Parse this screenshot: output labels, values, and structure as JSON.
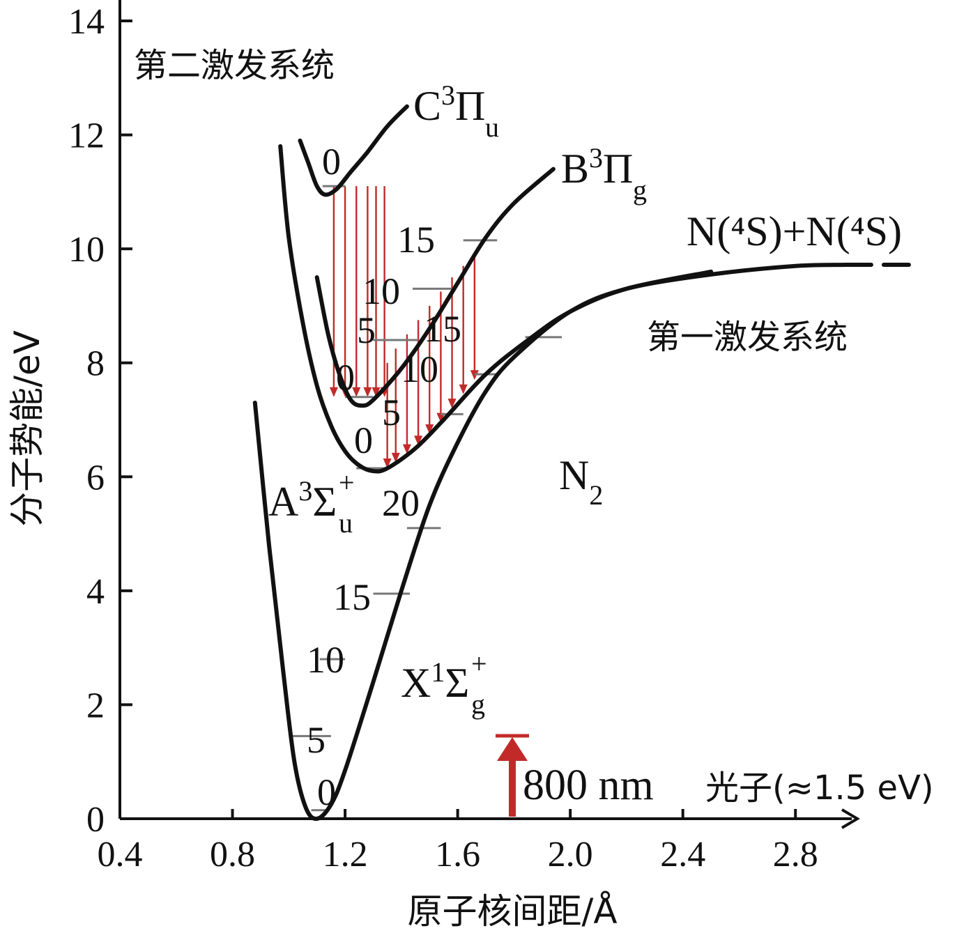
{
  "chart_data": {
    "type": "line",
    "title": "",
    "xlabel": "原子核间距/Å",
    "ylabel": "分子势能/eV",
    "xlim": [
      0.4,
      3.0
    ],
    "ylim": [
      0,
      14
    ],
    "xticks": [
      "0.4",
      "0.8",
      "1.2",
      "1.6",
      "2.0",
      "2.4",
      "2.8"
    ],
    "yticks": [
      "0",
      "2",
      "4",
      "6",
      "8",
      "10",
      "12",
      "14"
    ],
    "grid": false,
    "series": [
      {
        "name": "X¹Σg⁺",
        "label": {
          "main": "X",
          "sup": "1",
          "greek": "Σ",
          "sub": "g",
          "sup2": "+"
        },
        "points": [
          [
            0.88,
            7.3
          ],
          [
            0.93,
            4.8
          ],
          [
            0.98,
            2.6
          ],
          [
            1.02,
            1.0
          ],
          [
            1.06,
            0.2
          ],
          [
            1.1,
            0.0
          ],
          [
            1.15,
            0.25
          ],
          [
            1.2,
            0.85
          ],
          [
            1.3,
            2.4
          ],
          [
            1.4,
            4.0
          ],
          [
            1.5,
            5.5
          ],
          [
            1.6,
            6.6
          ],
          [
            1.7,
            7.5
          ],
          [
            1.8,
            8.1
          ],
          [
            2.0,
            8.9
          ],
          [
            2.2,
            9.3
          ],
          [
            2.5,
            9.55
          ],
          [
            2.8,
            9.7
          ],
          [
            2.98,
            9.72
          ]
        ],
        "levels": [
          {
            "v": "0",
            "energy": 0.15
          },
          {
            "v": "5",
            "energy": 1.45
          },
          {
            "v": "10",
            "energy": 2.8
          },
          {
            "v": "15",
            "energy": 3.95
          },
          {
            "v": "20",
            "energy": 5.1
          }
        ]
      },
      {
        "name": "A³Σu⁺",
        "label": {
          "main": "A",
          "sup": "3",
          "greek": "Σ",
          "sub": "u",
          "sup2": "+"
        },
        "points": [
          [
            0.97,
            11.8
          ],
          [
            1.0,
            10.2
          ],
          [
            1.05,
            8.7
          ],
          [
            1.1,
            7.6
          ],
          [
            1.15,
            6.9
          ],
          [
            1.2,
            6.45
          ],
          [
            1.25,
            6.2
          ],
          [
            1.3,
            6.1
          ],
          [
            1.35,
            6.15
          ],
          [
            1.45,
            6.5
          ],
          [
            1.55,
            7.0
          ],
          [
            1.7,
            7.8
          ],
          [
            1.85,
            8.4
          ],
          [
            2.0,
            8.9
          ],
          [
            2.2,
            9.3
          ],
          [
            2.5,
            9.6
          ]
        ],
        "levels": [
          {
            "v": "0",
            "energy": 6.15
          },
          {
            "v": "5",
            "energy": 7.1
          },
          {
            "v": "10",
            "energy": 7.8
          },
          {
            "v": "15",
            "energy": 8.45
          }
        ]
      },
      {
        "name": "B³Πg",
        "label": {
          "main": "B",
          "sup": "3",
          "greek": "Π",
          "sub": "g",
          "sup2": ""
        },
        "points": [
          [
            1.1,
            9.5
          ],
          [
            1.14,
            8.5
          ],
          [
            1.18,
            7.8
          ],
          [
            1.22,
            7.35
          ],
          [
            1.26,
            7.25
          ],
          [
            1.3,
            7.35
          ],
          [
            1.4,
            7.9
          ],
          [
            1.5,
            8.6
          ],
          [
            1.6,
            9.4
          ],
          [
            1.7,
            10.2
          ],
          [
            1.8,
            10.8
          ],
          [
            1.94,
            11.4
          ]
        ],
        "levels": [
          {
            "v": "0",
            "energy": 7.4
          },
          {
            "v": "5",
            "energy": 8.4
          },
          {
            "v": "10",
            "energy": 9.3
          },
          {
            "v": "15",
            "energy": 10.15
          }
        ]
      },
      {
        "name": "C³Πu",
        "label": {
          "main": "C",
          "sup": "3",
          "greek": "Π",
          "sub": "u",
          "sup2": ""
        },
        "points": [
          [
            1.04,
            11.9
          ],
          [
            1.07,
            11.5
          ],
          [
            1.1,
            11.1
          ],
          [
            1.13,
            10.95
          ],
          [
            1.17,
            11.05
          ],
          [
            1.22,
            11.35
          ],
          [
            1.28,
            11.7
          ],
          [
            1.35,
            12.15
          ],
          [
            1.42,
            12.5
          ]
        ],
        "levels": [
          {
            "v": "0",
            "energy": 11.1
          }
        ]
      }
    ],
    "dissociation_limit": {
      "label": "N(⁴S)+N(⁴S)",
      "energy": 9.72,
      "dashed_from": 2.98,
      "dashed_to": 3.3
    },
    "transitions": {
      "second_system": {
        "x": [
          1.16,
          1.2,
          1.24,
          1.28,
          1.31,
          1.34
        ],
        "from": 11.1,
        "to": 7.4
      },
      "first_system": {
        "x": [
          1.35,
          1.38,
          1.42,
          1.46,
          1.5,
          1.54,
          1.58,
          1.62,
          1.66
        ],
        "from": [
          8.0,
          8.25,
          8.5,
          8.75,
          9.0,
          9.25,
          9.5,
          9.7,
          9.85
        ],
        "to": [
          6.15,
          6.25,
          6.4,
          6.55,
          6.75,
          6.95,
          7.2,
          7.45,
          7.7
        ]
      }
    },
    "photon": {
      "x": 1.8,
      "energy": 1.5,
      "label": "800 nm",
      "description": "光子(≈1.5 eV)"
    },
    "annotations": {
      "second_excited": "第二激发系统",
      "first_excited": "第一激发系统",
      "molecule": {
        "main": "N",
        "sub": "2"
      }
    },
    "colors": {
      "curves": "#111111",
      "transitions": "#c22a2a",
      "vibrational_levels": "#777777"
    }
  }
}
